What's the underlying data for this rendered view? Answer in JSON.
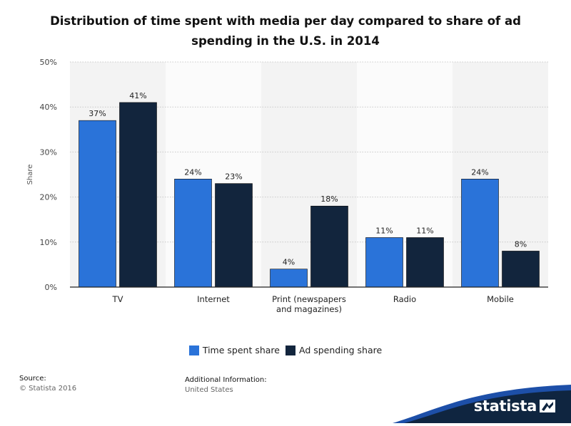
{
  "title": "Distribution of time spent with media per day compared to share of ad spending in the U.S. in 2014",
  "legend": {
    "items": [
      {
        "label": "Time spent share",
        "color": "#2a73d9"
      },
      {
        "label": "Ad spending share",
        "color": "#12253d"
      }
    ]
  },
  "footer": {
    "source_label": "Source:",
    "source_value": "© Statista 2016",
    "info_label": "Additional Information:",
    "info_value": "United States",
    "brand": "statista"
  },
  "chart_data": {
    "type": "bar",
    "categories": [
      [
        "TV"
      ],
      [
        "Internet"
      ],
      [
        "Print (newspapers",
        "and magazines)"
      ],
      [
        "Radio"
      ],
      [
        "Mobile"
      ]
    ],
    "series": [
      {
        "name": "Time spent share",
        "values": [
          37,
          24,
          4,
          11,
          24
        ],
        "color": "#2a73d9"
      },
      {
        "name": "Ad spending share",
        "values": [
          41,
          23,
          18,
          11,
          8
        ],
        "color": "#12253d"
      }
    ],
    "value_suffix": "%",
    "ylabel": "Share",
    "ylim": [
      0,
      50
    ],
    "yticks": [
      0,
      10,
      20,
      30,
      40,
      50
    ],
    "grid": true,
    "legend_position": "bottom"
  }
}
